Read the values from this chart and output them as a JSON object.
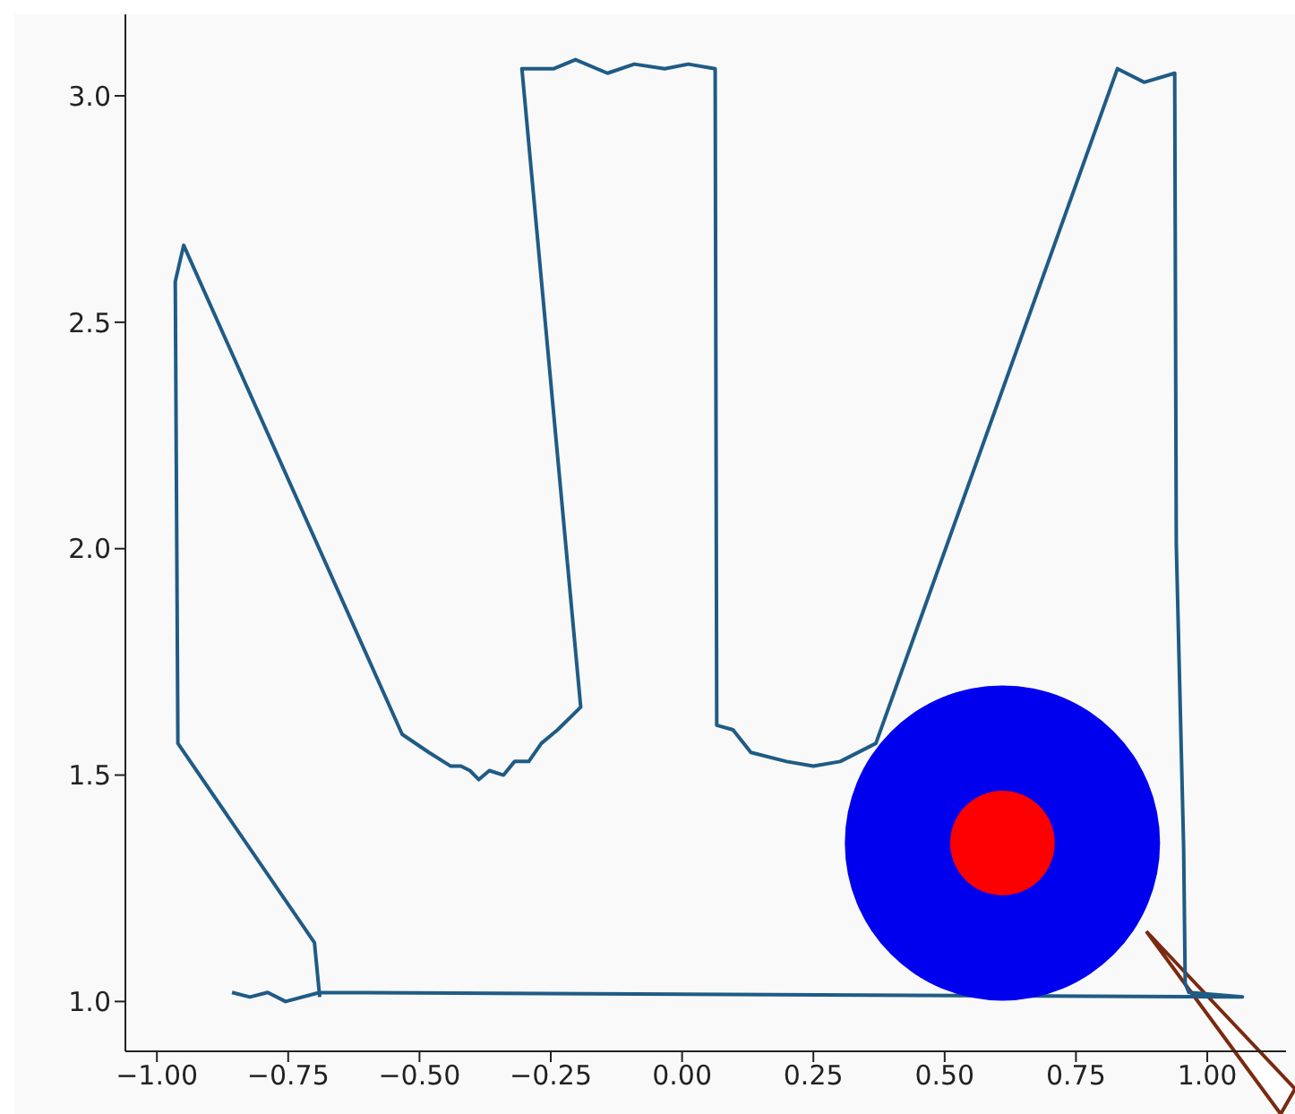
{
  "chart_data": {
    "type": "line",
    "xlim": [
      -1.06,
      1.15
    ],
    "ylim": [
      0.89,
      3.18
    ],
    "xticks": [
      {
        "value": -1,
        "label": "−1.00"
      },
      {
        "value": -0.75,
        "label": "−0.75"
      },
      {
        "value": -0.5,
        "label": "−0.50"
      },
      {
        "value": -0.25,
        "label": "−0.25"
      },
      {
        "value": 0,
        "label": "0.00"
      },
      {
        "value": 0.25,
        "label": "0.25"
      },
      {
        "value": 0.5,
        "label": "0.50"
      },
      {
        "value": 0.75,
        "label": "0.75"
      },
      {
        "value": 1,
        "label": "1.00"
      }
    ],
    "yticks": [
      {
        "value": 1,
        "label": "1.0"
      },
      {
        "value": 1.5,
        "label": "1.5"
      },
      {
        "value": 2,
        "label": "2.0"
      },
      {
        "value": 2.5,
        "label": "2.5"
      },
      {
        "value": 3,
        "label": "3.0"
      }
    ],
    "grid": false,
    "legend": false,
    "line_style": "solid",
    "series": [
      {
        "color": "#1f5b85",
        "marker": "none",
        "x": [
          -0.69,
          -0.7,
          -0.96,
          -0.965,
          -0.949,
          -0.533,
          -0.482,
          -0.441,
          -0.421,
          -0.404,
          -0.387,
          -0.367,
          -0.34,
          -0.319,
          -0.292,
          -0.268,
          -0.237,
          -0.193,
          -0.305,
          -0.244,
          -0.203,
          -0.142,
          -0.091,
          -0.033,
          0.012,
          0.063,
          0.066,
          0.097,
          0.131,
          0.199,
          0.25,
          0.301,
          0.369,
          0.829,
          0.88,
          0.938,
          0.941,
          0.955,
          0.958,
          0.965,
          1.067,
          -0.69,
          -0.755,
          -0.789,
          -0.823,
          -0.857
        ],
        "values": [
          1.01,
          1.13,
          1.57,
          2.59,
          2.67,
          1.59,
          1.55,
          1.52,
          1.52,
          1.51,
          1.49,
          1.51,
          1.5,
          1.53,
          1.53,
          1.57,
          1.6,
          1.65,
          3.06,
          3.06,
          3.08,
          3.05,
          3.07,
          3.06,
          3.07,
          3.06,
          1.61,
          1.6,
          1.55,
          1.53,
          1.52,
          1.53,
          1.57,
          3.06,
          3.03,
          3.05,
          2.01,
          1.34,
          1.04,
          1.02,
          1.01,
          1.02,
          1.0,
          1.02,
          1.01,
          1.02
        ]
      },
      {
        "type": "bubble",
        "colors": [
          "#0000ee",
          "#ff0000"
        ],
        "x": [
          0.61,
          0.61
        ],
        "values": [
          1.35,
          1.35
        ],
        "sizes": [
          1,
          0.11
        ]
      }
    ]
  }
}
